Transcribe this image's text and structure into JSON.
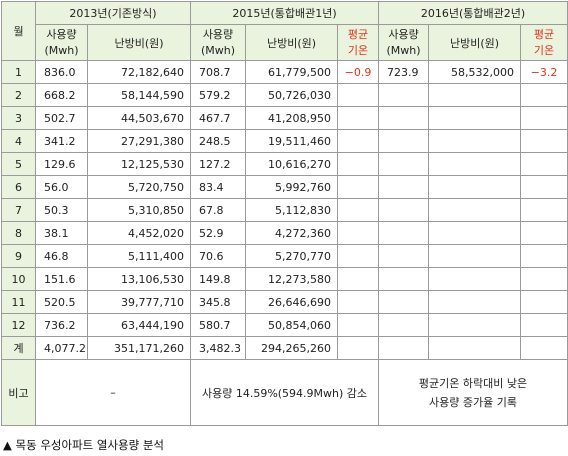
{
  "header": {
    "month": "월",
    "group_2013": "2013년(기존방식)",
    "group_2015": "2015년(통합배관1년)",
    "group_2016": "2016년(통합배관2년)",
    "usage_line1": "사용량",
    "usage_line2": "(Mwh)",
    "heating_cost": "난방비(원)",
    "avg_temp_line1": "평균",
    "avg_temp_line2": "기온"
  },
  "rows": [
    {
      "month": "1",
      "u2013": "836.0",
      "c2013": "72,182,640",
      "u2015": "708.7",
      "c2015": "61,779,500",
      "t2015": "−0.9",
      "u2016": "723.9",
      "c2016": "58,532,000",
      "t2016": "−3.2"
    },
    {
      "month": "2",
      "u2013": "668.2",
      "c2013": "58,144,590",
      "u2015": "579.2",
      "c2015": "50,726,030",
      "t2015": "",
      "u2016": "",
      "c2016": "",
      "t2016": ""
    },
    {
      "month": "3",
      "u2013": "502.7",
      "c2013": "44,503,670",
      "u2015": "467.7",
      "c2015": "41,208,950",
      "t2015": "",
      "u2016": "",
      "c2016": "",
      "t2016": ""
    },
    {
      "month": "4",
      "u2013": "341.2",
      "c2013": "27,291,380",
      "u2015": "248.5",
      "c2015": "19,511,460",
      "t2015": "",
      "u2016": "",
      "c2016": "",
      "t2016": ""
    },
    {
      "month": "5",
      "u2013": "129.6",
      "c2013": "12,125,530",
      "u2015": "127.2",
      "c2015": "10,616,270",
      "t2015": "",
      "u2016": "",
      "c2016": "",
      "t2016": ""
    },
    {
      "month": "6",
      "u2013": "56.0",
      "c2013": "5,720,750",
      "u2015": "83.4",
      "c2015": "5,992,760",
      "t2015": "",
      "u2016": "",
      "c2016": "",
      "t2016": ""
    },
    {
      "month": "7",
      "u2013": "50.3",
      "c2013": "5,310,850",
      "u2015": "67.8",
      "c2015": "5,112,830",
      "t2015": "",
      "u2016": "",
      "c2016": "",
      "t2016": ""
    },
    {
      "month": "8",
      "u2013": "38.1",
      "c2013": "4,452,020",
      "u2015": "52.9",
      "c2015": "4,272,360",
      "t2015": "",
      "u2016": "",
      "c2016": "",
      "t2016": ""
    },
    {
      "month": "9",
      "u2013": "46.8",
      "c2013": "5,111,400",
      "u2015": "70.6",
      "c2015": "5,270,770",
      "t2015": "",
      "u2016": "",
      "c2016": "",
      "t2016": ""
    },
    {
      "month": "10",
      "u2013": "151.6",
      "c2013": "13,106,530",
      "u2015": "149.8",
      "c2015": "12,273,580",
      "t2015": "",
      "u2016": "",
      "c2016": "",
      "t2016": ""
    },
    {
      "month": "11",
      "u2013": "520.5",
      "c2013": "39,777,710",
      "u2015": "345.8",
      "c2015": "26,646,690",
      "t2015": "",
      "u2016": "",
      "c2016": "",
      "t2016": ""
    },
    {
      "month": "12",
      "u2013": "736.2",
      "c2013": "63,444,190",
      "u2015": "580.7",
      "c2015": "50,854,060",
      "t2015": "",
      "u2016": "",
      "c2016": "",
      "t2016": ""
    }
  ],
  "total": {
    "month": "계",
    "u2013": "4,077.2",
    "c2013": "351,171,260",
    "u2015": "3,482.3",
    "c2015": "294,265,260"
  },
  "remarks": {
    "label": "비고",
    "r2013": "–",
    "r2015": "사용량 14.59%(594.9Mwh) 감소",
    "r2016_line1": "평균기온 하락대비 낮은",
    "r2016_line2": "사용량 증가율 기록"
  },
  "caption": "▲ 목동 우성아파트 열사용량 분석",
  "colors": {
    "header_bg": "#eaf3dd",
    "temp_text": "#e0341c",
    "border": "#9a9a9a"
  }
}
